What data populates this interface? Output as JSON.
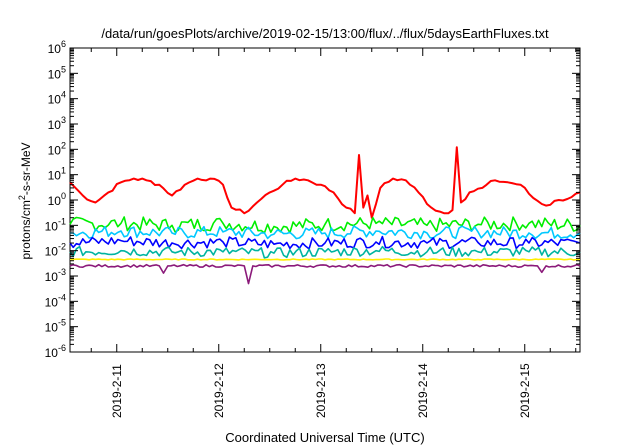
{
  "chart_data": {
    "type": "line",
    "title": "/data/run/goesPlots/archive/2019-02-15/13:00/flux/../flux/5daysEarthFluxes.txt",
    "xlabel": "Coordinated Universal Time (UTC)",
    "ylabel": {
      "main": "protons/cm",
      "sup": "2",
      "rest": "-s-sr-MeV"
    },
    "yscale": "log",
    "ylim": [
      1e-06,
      1000000.0
    ],
    "y_ticks": [
      {
        "exp": "-6",
        "value": 1e-06
      },
      {
        "exp": "-5",
        "value": 1e-05
      },
      {
        "exp": "-4",
        "value": 0.0001
      },
      {
        "exp": "-3",
        "value": 0.001
      },
      {
        "exp": "-2",
        "value": 0.01
      },
      {
        "exp": "-1",
        "value": 0.1
      },
      {
        "exp": "0",
        "value": 1
      },
      {
        "exp": "1",
        "value": 10
      },
      {
        "exp": "2",
        "value": 100
      },
      {
        "exp": "3",
        "value": 1000
      },
      {
        "exp": "4",
        "value": 10000
      },
      {
        "exp": "5",
        "value": 100000
      },
      {
        "exp": "6",
        "value": 1000000
      }
    ],
    "y_tick_base": "10",
    "xlim": [
      "2019-02-10 13:00",
      "2019-02-15 13:00"
    ],
    "x_ticks": [
      "2019-2-11",
      "2019-2-12",
      "2019-2-13",
      "2019-2-14",
      "2019-2-15"
    ],
    "grid": false,
    "legend": "none",
    "series": [
      {
        "color": "#ff0000",
        "x": [
          "02-10 13:00",
          "02-10 16:00",
          "02-10 19:00",
          "02-10 22:00",
          "02-11 01:00",
          "02-11 04:00",
          "02-11 07:00",
          "02-11 10:00",
          "02-11 13:00",
          "02-11 16:00",
          "02-11 19:00",
          "02-11 22:00",
          "02-12 01:00",
          "02-12 03:00",
          "02-12 06:00",
          "02-12 09:00",
          "02-12 12:00",
          "02-12 15:00",
          "02-12 18:00",
          "02-12 21:00",
          "02-13 00:00",
          "02-13 03:00",
          "02-13 06:00",
          "02-13 08:00",
          "02-13 09:00",
          "02-13 10:00",
          "02-13 11:00",
          "02-13 12:00",
          "02-13 14:00",
          "02-13 17:00",
          "02-13 20:00",
          "02-13 23:00",
          "02-14 02:00",
          "02-14 05:00",
          "02-14 07:00",
          "02-14 08:00",
          "02-14 09:00",
          "02-14 11:00",
          "02-14 14:00",
          "02-14 17:00",
          "02-14 20:00",
          "02-14 23:00",
          "02-15 02:00",
          "02-15 05:00",
          "02-15 08:00",
          "02-15 11:00",
          "02-15 13:00"
        ],
        "values": [
          5,
          1.5,
          0.8,
          2,
          5,
          7,
          6,
          4,
          1.5,
          4,
          7,
          7,
          4,
          0.5,
          0.3,
          0.8,
          2,
          4,
          7,
          6,
          4,
          2,
          0.5,
          0.3,
          60,
          0.5,
          1.5,
          0.2,
          3,
          7,
          6,
          2,
          0.5,
          0.3,
          0.4,
          120,
          0.8,
          2,
          3,
          6,
          5,
          4,
          1.2,
          0.6,
          1,
          1.3,
          2
        ]
      },
      {
        "color": "#00ee00",
        "x": [
          "02-10 13:00",
          "02-11 01:00",
          "02-11 13:00",
          "02-12 01:00",
          "02-12 13:00",
          "02-13 01:00",
          "02-13 13:00",
          "02-14 01:00",
          "02-14 13:00",
          "02-15 01:00",
          "02-15 13:00"
        ],
        "values": [
          0.11,
          0.12,
          0.1,
          0.12,
          0.09,
          0.11,
          0.12,
          0.1,
          0.11,
          0.12,
          0.1
        ]
      },
      {
        "color": "#00c8ff",
        "x": [
          "02-10 13:00",
          "02-11 01:00",
          "02-11 13:00",
          "02-12 01:00",
          "02-12 13:00",
          "02-13 01:00",
          "02-13 13:00",
          "02-14 01:00",
          "02-14 13:00",
          "02-15 01:00",
          "02-15 13:00"
        ],
        "values": [
          0.05,
          0.06,
          0.05,
          0.055,
          0.045,
          0.05,
          0.06,
          0.05,
          0.055,
          0.05,
          0.05
        ]
      },
      {
        "color": "#0000ff",
        "x": [
          "02-10 13:00",
          "02-11 01:00",
          "02-11 13:00",
          "02-12 01:00",
          "02-12 13:00",
          "02-13 01:00",
          "02-13 13:00",
          "02-14 01:00",
          "02-14 13:00",
          "02-15 01:00",
          "02-15 13:00"
        ],
        "values": [
          0.02,
          0.025,
          0.02,
          0.022,
          0.018,
          0.02,
          0.022,
          0.02,
          0.021,
          0.02,
          0.02
        ]
      },
      {
        "color": "#00b4a0",
        "x": [
          "02-10 13:00",
          "02-11 01:00",
          "02-11 13:00",
          "02-12 01:00",
          "02-12 13:00",
          "02-13 01:00",
          "02-13 13:00",
          "02-14 01:00",
          "02-14 13:00",
          "02-15 01:00",
          "02-15 13:00"
        ],
        "values": [
          0.009,
          0.01,
          0.009,
          0.009,
          0.008,
          0.009,
          0.01,
          0.009,
          0.009,
          0.009,
          0.009
        ]
      },
      {
        "color": "#ffee00",
        "x": [
          "02-10 13:00",
          "02-11 13:00",
          "02-12 13:00",
          "02-13 13:00",
          "02-14 13:00",
          "02-15 13:00"
        ],
        "values": [
          0.0045,
          0.0045,
          0.0045,
          0.0045,
          0.0045,
          0.0045
        ]
      },
      {
        "color": "#8b1a7a",
        "x": [
          "02-10 13:00",
          "02-11 10:00",
          "02-11 11:00",
          "02-11 12:00",
          "02-12 06:00",
          "02-12 07:00",
          "02-12 08:00",
          "02-15 03:00",
          "02-15 04:00",
          "02-15 05:00",
          "02-15 13:00"
        ],
        "values": [
          0.0025,
          0.0025,
          0.0013,
          0.0025,
          0.0025,
          0.0005,
          0.0025,
          0.0025,
          0.0014,
          0.0025,
          0.0025
        ]
      }
    ]
  }
}
